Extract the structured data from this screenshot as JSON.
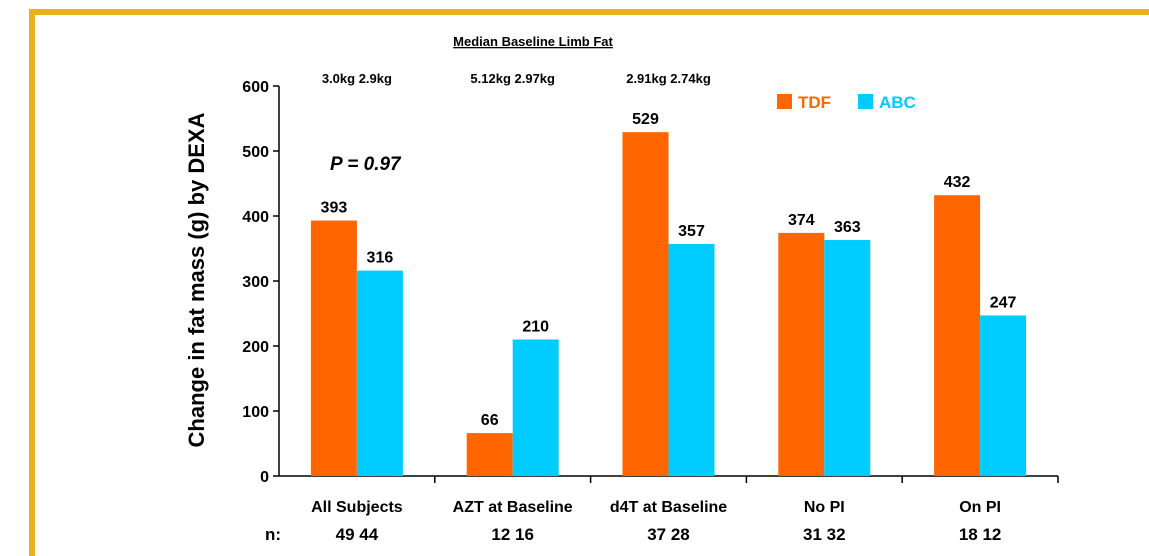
{
  "colors": {
    "border": "#e8b21a",
    "tdf": "#ff6600",
    "abc": "#00ccff"
  },
  "header": {
    "title": "Median Baseline Limb Fat",
    "group_notes": [
      "3.0kg  2.9kg",
      "5.12kg  2.97kg",
      "2.91kg  2.74kg"
    ]
  },
  "annotation": "P = 0.97",
  "n_prefix": "n:",
  "chart_data": {
    "type": "bar",
    "ylabel": "Change in fat mass (g) by DEXA",
    "ylim": [
      0,
      600
    ],
    "yticks": [
      0,
      100,
      200,
      300,
      400,
      500,
      600
    ],
    "categories": [
      "All Subjects",
      "AZT at Baseline",
      "d4T at Baseline",
      "No PI",
      "On PI"
    ],
    "series": [
      {
        "name": "TDF",
        "color": "#ff6600",
        "values": [
          393,
          66,
          529,
          374,
          432
        ],
        "n": [
          49,
          12,
          37,
          31,
          18
        ]
      },
      {
        "name": "ABC",
        "color": "#00ccff",
        "values": [
          316,
          210,
          357,
          363,
          247
        ],
        "n": [
          44,
          16,
          28,
          32,
          12
        ]
      }
    ],
    "legend_position": "top-right",
    "grid": false
  }
}
